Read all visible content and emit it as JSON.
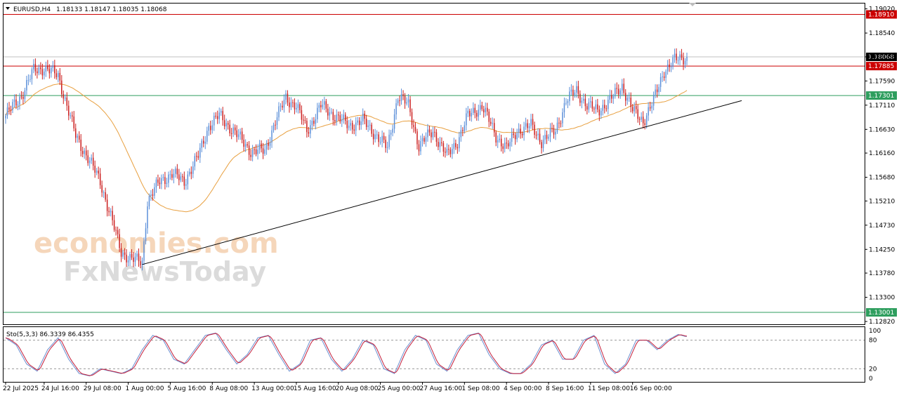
{
  "header": {
    "symbol": "EURUSD,H4",
    "ohlc": "1.18133 1.18147 1.18035 1.18068",
    "menu_icon": "triangle-down-icon"
  },
  "watermark": {
    "line1": "economies.com",
    "line2": "FxNewsToday"
  },
  "stochastic": {
    "label": "Sto(5,3,3) 86.3339 86.4355",
    "levels": [
      "100",
      "80",
      "20",
      "0"
    ]
  },
  "chart_data": {
    "type": "candlestick",
    "symbol": "EURUSD",
    "timeframe": "H4",
    "last_price": 1.18068,
    "ylim": [
      1.1282,
      1.1907
    ],
    "y_ticks": [
      "1.19020",
      "1.18540",
      "1.18068",
      "1.17590",
      "1.17110",
      "1.16630",
      "1.16160",
      "1.15680",
      "1.15210",
      "1.14730",
      "1.14250",
      "1.13780",
      "1.13300",
      "1.12820"
    ],
    "x_ticks": [
      "22 Jul 2025",
      "24 Jul 16:00",
      "29 Jul 08:00",
      "1 Aug 00:00",
      "5 Aug 16:00",
      "8 Aug 08:00",
      "13 Aug 00:00",
      "15 Aug 16:00",
      "20 Aug 08:00",
      "25 Aug 00:00",
      "27 Aug 16:00",
      "1 Sep 08:00",
      "4 Sep 00:00",
      "8 Sep 16:00",
      "11 Sep 08:00",
      "16 Sep 00:00"
    ],
    "levels": [
      {
        "value": 1.1891,
        "label": "1.18910",
        "color": "#cc0000"
      },
      {
        "value": 1.17885,
        "label": "1.17885",
        "color": "#cc0000"
      },
      {
        "value": 1.17301,
        "label": "1.17301",
        "color": "#2e9e5e"
      },
      {
        "value": 1.13001,
        "label": "1.13001",
        "color": "#2e9e5e"
      }
    ],
    "trendline": {
      "from": [
        "1 Aug 00:00",
        1.1395
      ],
      "to": [
        "16 Sep 00:00",
        1.172
      ]
    },
    "moving_average_color": "#e8a040",
    "bull_color": "#5b8fd9",
    "bear_color": "#cc1f1f",
    "close_path": [
      [
        0,
        1.169
      ],
      [
        9,
        1.173
      ],
      [
        16,
        1.178
      ],
      [
        22,
        1.1785
      ],
      [
        30,
        1.177
      ],
      [
        40,
        1.165
      ],
      [
        48,
        1.16
      ],
      [
        54,
        1.156
      ],
      [
        60,
        1.149
      ],
      [
        66,
        1.142
      ],
      [
        72,
        1.1405
      ],
      [
        78,
        1.14
      ],
      [
        81,
        1.152
      ],
      [
        88,
        1.156
      ],
      [
        95,
        1.1575
      ],
      [
        102,
        1.156
      ],
      [
        110,
        1.161
      ],
      [
        116,
        1.167
      ],
      [
        122,
        1.169
      ],
      [
        130,
        1.166
      ],
      [
        140,
        1.162
      ],
      [
        148,
        1.162
      ],
      [
        154,
        1.168
      ],
      [
        160,
        1.1725
      ],
      [
        166,
        1.171
      ],
      [
        172,
        1.166
      ],
      [
        180,
        1.171
      ],
      [
        188,
        1.169
      ],
      [
        196,
        1.167
      ],
      [
        204,
        1.168
      ],
      [
        212,
        1.165
      ],
      [
        218,
        1.1625
      ],
      [
        224,
        1.173
      ],
      [
        230,
        1.171
      ],
      [
        236,
        1.163
      ],
      [
        244,
        1.166
      ],
      [
        252,
        1.161
      ],
      [
        258,
        1.164
      ],
      [
        264,
        1.169
      ],
      [
        272,
        1.171
      ],
      [
        280,
        1.165
      ],
      [
        286,
        1.1625
      ],
      [
        292,
        1.166
      ],
      [
        300,
        1.167
      ],
      [
        306,
        1.164
      ],
      [
        314,
        1.166
      ],
      [
        320,
        1.172
      ],
      [
        326,
        1.174
      ],
      [
        332,
        1.171
      ],
      [
        338,
        1.17
      ],
      [
        345,
        1.172
      ],
      [
        352,
        1.175
      ],
      [
        358,
        1.17
      ],
      [
        364,
        1.168
      ],
      [
        370,
        1.172
      ],
      [
        376,
        1.178
      ],
      [
        382,
        1.18
      ],
      [
        388,
        1.1806
      ]
    ],
    "stochastic_k": [
      [
        0,
        85
      ],
      [
        6,
        70
      ],
      [
        12,
        30
      ],
      [
        18,
        15
      ],
      [
        24,
        60
      ],
      [
        30,
        85
      ],
      [
        36,
        40
      ],
      [
        42,
        10
      ],
      [
        48,
        5
      ],
      [
        54,
        20
      ],
      [
        60,
        15
      ],
      [
        66,
        10
      ],
      [
        72,
        20
      ],
      [
        78,
        60
      ],
      [
        84,
        90
      ],
      [
        90,
        80
      ],
      [
        96,
        40
      ],
      [
        102,
        30
      ],
      [
        108,
        60
      ],
      [
        114,
        90
      ],
      [
        120,
        95
      ],
      [
        126,
        60
      ],
      [
        132,
        30
      ],
      [
        138,
        50
      ],
      [
        144,
        85
      ],
      [
        150,
        90
      ],
      [
        156,
        50
      ],
      [
        162,
        15
      ],
      [
        168,
        30
      ],
      [
        174,
        80
      ],
      [
        180,
        85
      ],
      [
        186,
        40
      ],
      [
        192,
        15
      ],
      [
        198,
        40
      ],
      [
        204,
        80
      ],
      [
        210,
        70
      ],
      [
        216,
        20
      ],
      [
        222,
        10
      ],
      [
        228,
        60
      ],
      [
        234,
        90
      ],
      [
        240,
        80
      ],
      [
        246,
        30
      ],
      [
        252,
        15
      ],
      [
        258,
        60
      ],
      [
        264,
        90
      ],
      [
        270,
        95
      ],
      [
        276,
        50
      ],
      [
        282,
        20
      ],
      [
        288,
        10
      ],
      [
        294,
        10
      ],
      [
        300,
        30
      ],
      [
        306,
        70
      ],
      [
        312,
        80
      ],
      [
        318,
        40
      ],
      [
        324,
        40
      ],
      [
        330,
        80
      ],
      [
        336,
        90
      ],
      [
        342,
        30
      ],
      [
        348,
        10
      ],
      [
        354,
        30
      ],
      [
        360,
        80
      ],
      [
        366,
        80
      ],
      [
        372,
        60
      ],
      [
        378,
        80
      ],
      [
        384,
        92
      ],
      [
        388,
        88
      ]
    ],
    "stochastic_d_lag": 3
  }
}
